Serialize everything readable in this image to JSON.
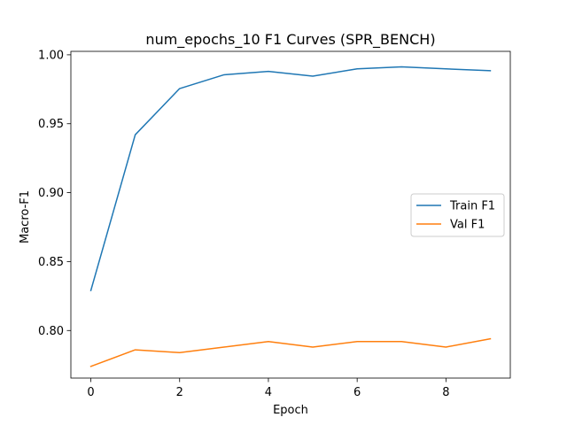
{
  "chart_data": {
    "type": "line",
    "title": "num_epochs_10 F1 Curves (SPR_BENCH)",
    "xlabel": "Epoch",
    "ylabel": "Macro-F1",
    "x": [
      0,
      1,
      2,
      3,
      4,
      5,
      6,
      7,
      8,
      9
    ],
    "xlim": [
      -0.45,
      9.45
    ],
    "ylim": [
      0.7655,
      1.0025
    ],
    "xticks": [
      0,
      2,
      4,
      6,
      8
    ],
    "xtick_labels": [
      "0",
      "2",
      "4",
      "6",
      "8"
    ],
    "yticks": [
      0.8,
      0.85,
      0.9,
      0.95,
      1.0
    ],
    "ytick_labels": [
      "0.80",
      "0.85",
      "0.90",
      "0.95",
      "1.00"
    ],
    "grid": false,
    "legend_position": "center-right",
    "series": [
      {
        "name": "Train F1",
        "color": "#1f77b4",
        "values": [
          0.829,
          0.942,
          0.9755,
          0.9855,
          0.988,
          0.9845,
          0.9898,
          0.9913,
          0.9898,
          0.9885
        ]
      },
      {
        "name": "Val F1",
        "color": "#ff7f0e",
        "values": [
          0.774,
          0.786,
          0.784,
          0.788,
          0.792,
          0.788,
          0.792,
          0.792,
          0.788,
          0.794
        ]
      }
    ]
  }
}
